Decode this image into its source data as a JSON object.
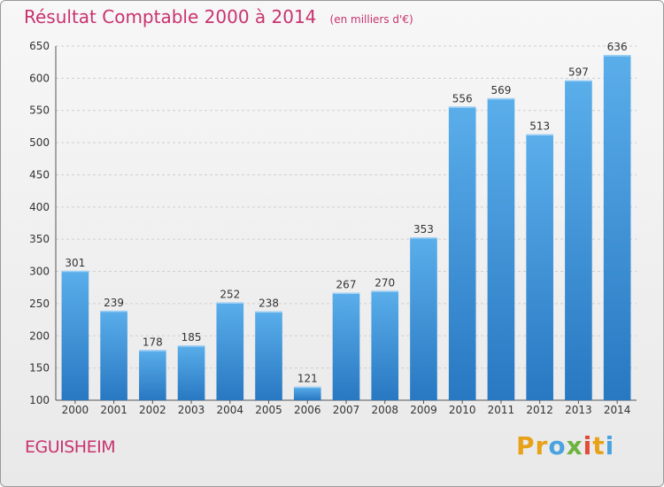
{
  "header": {
    "title": "Résultat Comptable 2000 à 2014",
    "subtitle": "(en milliers d'€)"
  },
  "footer": {
    "city": "EGUISHEIM",
    "logo_letters": [
      "P",
      "r",
      "o",
      "x",
      "i",
      "t",
      "i"
    ],
    "logo_colors": [
      "#e8a21a",
      "#e8a21a",
      "#4aa3df",
      "#6cb33f",
      "#e24a3b",
      "#e8a21a",
      "#4aa3df"
    ]
  },
  "chart_data": {
    "type": "bar",
    "title": "Résultat Comptable 2000 à 2014",
    "subtitle": "(en milliers d'€)",
    "categories": [
      "2000",
      "2001",
      "2002",
      "2003",
      "2004",
      "2005",
      "2006",
      "2007",
      "2008",
      "2009",
      "2010",
      "2011",
      "2012",
      "2013",
      "2014"
    ],
    "values": [
      301,
      239,
      178,
      185,
      252,
      238,
      121,
      267,
      270,
      353,
      556,
      569,
      513,
      597,
      636
    ],
    "ylim": [
      100,
      650
    ],
    "yticks": [
      100,
      150,
      200,
      250,
      300,
      350,
      400,
      450,
      500,
      550,
      600,
      650
    ],
    "grid": true,
    "bar_color": "#3c8fd6"
  }
}
